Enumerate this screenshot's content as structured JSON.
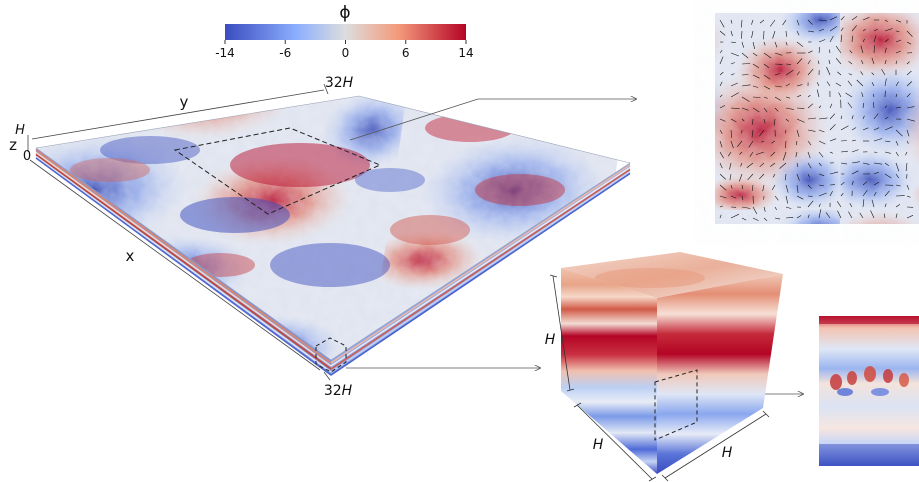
{
  "colorbar": {
    "title": "ϕ",
    "ticks": [
      "-14",
      "-6",
      "0",
      "6",
      "14"
    ],
    "colors": [
      "#3a4cc0",
      "#8db0fe",
      "#dddddd",
      "#f49a7b",
      "#b40426"
    ]
  },
  "domain": {
    "corner_label": "32",
    "corner_unit": "H",
    "height_label": "H",
    "zero_label": "0",
    "axes": {
      "x": "x",
      "y": "y",
      "z": "z"
    }
  },
  "cube": {
    "edge_label": "H"
  }
}
